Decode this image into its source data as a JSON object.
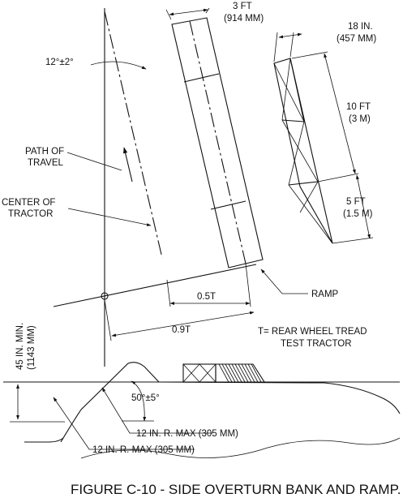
{
  "labels": {
    "angle_top": "12°±2°",
    "path_of_travel_1": "PATH OF",
    "path_of_travel_2": "TRAVEL",
    "center_of_tractor_1": "CENTER OF",
    "center_of_tractor_2": "TRACTOR",
    "width_3ft_1": "3 FT",
    "width_3ft_2": "(914 MM)",
    "width_18in_1": "18 IN.",
    "width_18in_2": "(457 MM)",
    "len_10ft_1": "10 FT",
    "len_10ft_2": "(3 M)",
    "len_5ft_1": "5 FT",
    "len_5ft_2": "(1.5 M)",
    "ramp": "RAMP",
    "half_t": "0.5T",
    "nine_tenths_t": "0.9T",
    "tread_note_1": "T= REAR WHEEL TREAD",
    "tread_note_2": "TEST TRACTOR",
    "height_1": "45 IN. MIN.",
    "height_2": "(1143 MM)",
    "angle_bank": "50°±5°",
    "radius_1": "12 IN. R. MAX (305 MM)",
    "radius_2": "12 IN. R. MAX (305 MM)"
  },
  "caption": "FIGURE C-10 - SIDE OVERTURN BANK AND RAMP."
}
